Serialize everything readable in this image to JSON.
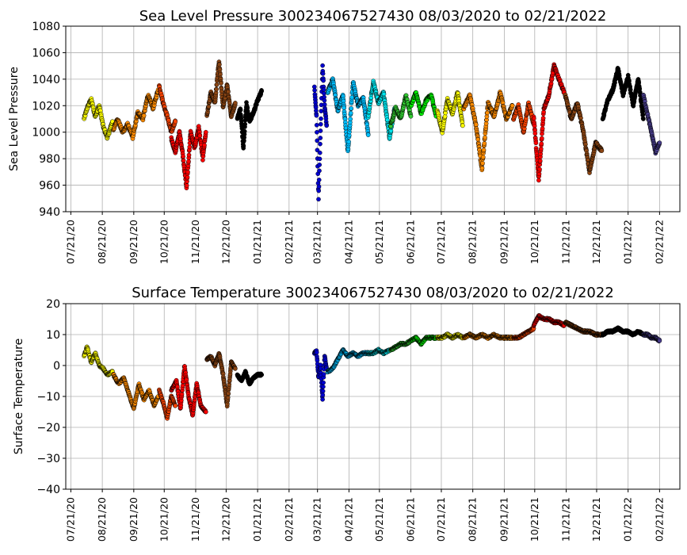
{
  "chart_data": [
    {
      "type": "scatter",
      "title": "Sea Level Pressure 300234067527430  08/03/2020 to 02/21/2022",
      "xlabel": "",
      "ylabel": "Sea Level Pressure",
      "ylim": [
        940,
        1080
      ],
      "yticks": [
        940,
        960,
        980,
        1000,
        1020,
        1040,
        1060,
        1080
      ],
      "xlim": [
        "2020-07-16",
        "2022-03-13"
      ],
      "xtick_labels": [
        "07/21/20",
        "08/21/20",
        "09/21/20",
        "10/21/20",
        "11/21/20",
        "12/21/20",
        "01/21/21",
        "02/21/21",
        "03/21/21",
        "04/21/21",
        "05/21/21",
        "06/21/21",
        "07/21/21",
        "08/21/21",
        "09/21/21",
        "10/21/21",
        "11/21/21",
        "12/21/21",
        "01/21/22",
        "02/21/22"
      ],
      "xtick_dates": [
        "2020-07-21",
        "2020-08-21",
        "2020-09-21",
        "2020-10-21",
        "2020-11-21",
        "2020-12-21",
        "2021-01-21",
        "2021-02-21",
        "2021-03-21",
        "2021-04-21",
        "2021-05-21",
        "2021-06-21",
        "2021-07-21",
        "2021-08-21",
        "2021-09-21",
        "2021-10-21",
        "2021-11-21",
        "2021-12-21",
        "2022-01-21",
        "2022-02-21"
      ],
      "grid": true,
      "series": [
        {
          "color": "#ffff00",
          "dates": [
            "2020-08-03",
            "2020-08-06",
            "2020-08-10",
            "2020-08-14",
            "2020-08-18",
            "2020-08-22",
            "2020-08-26",
            "2020-08-31"
          ],
          "values": [
            1010,
            1018,
            1025,
            1012,
            1020,
            1004,
            996,
            1008
          ]
        },
        {
          "color": "#ff8c00",
          "dates": [
            "2020-09-01",
            "2020-09-05",
            "2020-09-10",
            "2020-09-15",
            "2020-09-20",
            "2020-09-25",
            "2020-09-30",
            "2020-10-05",
            "2020-10-10",
            "2020-10-15"
          ],
          "values": [
            1002,
            1010,
            1000,
            1006,
            996,
            1015,
            1010,
            1028,
            1018,
            1032
          ]
        },
        {
          "color": "#ff4500",
          "dates": [
            "2020-10-16",
            "2020-10-20",
            "2020-10-24",
            "2020-10-28",
            "2020-11-01"
          ],
          "values": [
            1035,
            1022,
            1012,
            1000,
            1008
          ]
        },
        {
          "color": "#ff0000",
          "dates": [
            "2020-10-28",
            "2020-11-01",
            "2020-11-05",
            "2020-11-08",
            "2020-11-12",
            "2020-11-16",
            "2020-11-20",
            "2020-11-24",
            "2020-11-28",
            "2020-12-01"
          ],
          "values": [
            995,
            985,
            1000,
            985,
            958,
            1000,
            988,
            1004,
            980,
            1000
          ]
        },
        {
          "color": "#8b4513",
          "dates": [
            "2020-12-02",
            "2020-12-06",
            "2020-12-10",
            "2020-12-14",
            "2020-12-18",
            "2020-12-22",
            "2020-12-26",
            "2020-12-30"
          ],
          "values": [
            1012,
            1030,
            1022,
            1054,
            1018,
            1036,
            1012,
            1022
          ]
        },
        {
          "color": "#000000",
          "dates": [
            "2021-01-01",
            "2021-01-04",
            "2021-01-07",
            "2021-01-10",
            "2021-01-13",
            "2021-01-17",
            "2021-01-21",
            "2021-01-25"
          ],
          "values": [
            1010,
            1018,
            988,
            1022,
            1008,
            1015,
            1024,
            1031
          ]
        },
        {
          "color": "#0000cd",
          "dates": [
            "2021-03-18",
            "2021-03-20",
            "2021-03-22",
            "2021-03-24",
            "2021-03-26",
            "2021-03-28",
            "2021-03-30"
          ],
          "values": [
            1034,
            1012,
            950,
            1000,
            1050,
            1020,
            1005
          ]
        },
        {
          "color": "#00bfff",
          "dates": [
            "2021-03-31",
            "2021-04-05",
            "2021-04-10",
            "2021-04-15",
            "2021-04-20",
            "2021-04-25",
            "2021-04-30",
            "2021-05-05",
            "2021-05-10"
          ],
          "values": [
            1030,
            1040,
            1016,
            1028,
            985,
            1038,
            1020,
            1026,
            998
          ]
        },
        {
          "color": "#00e5ee",
          "dates": [
            "2021-05-10",
            "2021-05-15",
            "2021-05-20",
            "2021-05-25",
            "2021-05-31",
            "2021-06-05"
          ],
          "values": [
            1012,
            1038,
            1022,
            1030,
            996,
            1018
          ]
        },
        {
          "color": "#32cd32",
          "dates": [
            "2021-06-01",
            "2021-06-06",
            "2021-06-11",
            "2021-06-16",
            "2021-06-21"
          ],
          "values": [
            1005,
            1018,
            1010,
            1028,
            1012
          ]
        },
        {
          "color": "#00ff00",
          "dates": [
            "2021-06-21",
            "2021-06-26",
            "2021-07-01",
            "2021-07-06",
            "2021-07-11",
            "2021-07-16"
          ],
          "values": [
            1020,
            1030,
            1014,
            1024,
            1028,
            1012
          ]
        },
        {
          "color": "#ffff00",
          "dates": [
            "2021-07-17",
            "2021-07-22",
            "2021-07-27",
            "2021-08-01",
            "2021-08-06",
            "2021-08-11"
          ],
          "values": [
            1016,
            1000,
            1025,
            1014,
            1030,
            1005
          ]
        },
        {
          "color": "#ff8c00",
          "dates": [
            "2021-08-12",
            "2021-08-18",
            "2021-08-24",
            "2021-08-30",
            "2021-09-05",
            "2021-09-11",
            "2021-09-17",
            "2021-09-23",
            "2021-09-29"
          ],
          "values": [
            1018,
            1028,
            1006,
            972,
            1022,
            1012,
            1030,
            1010,
            1020
          ]
        },
        {
          "color": "#ff4500",
          "dates": [
            "2021-09-30",
            "2021-10-05",
            "2021-10-10",
            "2021-10-15",
            "2021-10-20"
          ],
          "values": [
            1010,
            1020,
            1000,
            1022,
            1006
          ]
        },
        {
          "color": "#ff0000",
          "dates": [
            "2021-10-20",
            "2021-10-25",
            "2021-10-30",
            "2021-11-04",
            "2021-11-09",
            "2021-11-14",
            "2021-11-19"
          ],
          "values": [
            1012,
            964,
            1018,
            1028,
            1050,
            1040,
            1030
          ]
        },
        {
          "color": "#8b4513",
          "dates": [
            "2021-11-20",
            "2021-11-26",
            "2021-12-02",
            "2021-12-08",
            "2021-12-14",
            "2021-12-20",
            "2021-12-26"
          ],
          "values": [
            1028,
            1010,
            1022,
            1000,
            970,
            992,
            986
          ]
        },
        {
          "color": "#000000",
          "dates": [
            "2021-12-27",
            "2022-01-01",
            "2022-01-06",
            "2022-01-11",
            "2022-01-16",
            "2022-01-21",
            "2022-01-26",
            "2022-01-31",
            "2022-02-05"
          ],
          "values": [
            1010,
            1024,
            1032,
            1048,
            1028,
            1042,
            1020,
            1040,
            1010
          ]
        },
        {
          "color": "#483d8b",
          "dates": [
            "2022-02-05",
            "2022-02-09",
            "2022-02-13",
            "2022-02-17",
            "2022-02-21"
          ],
          "values": [
            1028,
            1014,
            1000,
            985,
            992
          ]
        }
      ]
    },
    {
      "type": "scatter",
      "title": "Surface Temperature 300234067527430  08/03/2020 to 02/21/2022",
      "xlabel": "",
      "ylabel": "Surface Temperature",
      "ylim": [
        -40,
        20
      ],
      "yticks": [
        -40,
        -30,
        -20,
        -10,
        0,
        10,
        20
      ],
      "xlim": [
        "2020-07-16",
        "2022-03-13"
      ],
      "xtick_labels": [
        "07/21/20",
        "08/21/20",
        "09/21/20",
        "10/21/20",
        "11/21/20",
        "12/21/20",
        "01/21/21",
        "02/21/21",
        "03/21/21",
        "04/21/21",
        "05/21/21",
        "06/21/21",
        "07/21/21",
        "08/21/21",
        "09/21/21",
        "10/21/21",
        "11/21/21",
        "12/21/21",
        "01/21/22",
        "02/21/22"
      ],
      "xtick_dates": [
        "2020-07-21",
        "2020-08-21",
        "2020-09-21",
        "2020-10-21",
        "2020-11-21",
        "2020-12-21",
        "2021-01-21",
        "2021-02-21",
        "2021-03-21",
        "2021-04-21",
        "2021-05-21",
        "2021-06-21",
        "2021-07-21",
        "2021-08-21",
        "2021-09-21",
        "2021-10-21",
        "2021-11-21",
        "2021-12-21",
        "2022-01-21",
        "2022-02-21"
      ],
      "grid": true,
      "series": [
        {
          "color": "#ffff00",
          "dates": [
            "2020-08-03",
            "2020-08-06",
            "2020-08-10",
            "2020-08-14",
            "2020-08-18",
            "2020-08-22",
            "2020-08-26",
            "2020-08-31"
          ],
          "values": [
            3,
            6,
            1,
            4,
            0,
            -1,
            -3,
            -2
          ]
        },
        {
          "color": "#ff8c00",
          "dates": [
            "2020-09-01",
            "2020-09-06",
            "2020-09-11",
            "2020-09-16",
            "2020-09-21",
            "2020-09-26",
            "2020-10-01",
            "2020-10-06",
            "2020-10-11",
            "2020-10-15"
          ],
          "values": [
            -3,
            -6,
            -4,
            -9,
            -14,
            -6,
            -11,
            -8,
            -13,
            -10
          ]
        },
        {
          "color": "#ff4500",
          "dates": [
            "2020-10-16",
            "2020-10-20",
            "2020-10-24",
            "2020-10-28",
            "2020-11-01"
          ],
          "values": [
            -8,
            -12,
            -17,
            -10,
            -13
          ]
        },
        {
          "color": "#ff0000",
          "dates": [
            "2020-10-28",
            "2020-11-02",
            "2020-11-06",
            "2020-11-10",
            "2020-11-14",
            "2020-11-18",
            "2020-11-22",
            "2020-11-26",
            "2020-12-01"
          ],
          "values": [
            -8,
            -5,
            -14,
            0,
            -10,
            -16,
            -6,
            -13,
            -15
          ]
        },
        {
          "color": "#8b4513",
          "dates": [
            "2020-12-02",
            "2020-12-06",
            "2020-12-10",
            "2020-12-14",
            "2020-12-18",
            "2020-12-22",
            "2020-12-26",
            "2020-12-30"
          ],
          "values": [
            2,
            3,
            0,
            4,
            -3,
            -13,
            1,
            -1
          ]
        },
        {
          "color": "#000000",
          "dates": [
            "2021-01-01",
            "2021-01-05",
            "2021-01-09",
            "2021-01-13",
            "2021-01-17",
            "2021-01-21",
            "2021-01-25"
          ],
          "values": [
            -3,
            -5,
            -2,
            -6,
            -4,
            -3,
            -3
          ]
        },
        {
          "color": "#0000cd",
          "dates": [
            "2021-03-18",
            "2021-03-20",
            "2021-03-22",
            "2021-03-24",
            "2021-03-26",
            "2021-03-28",
            "2021-03-30"
          ],
          "values": [
            4,
            5,
            -4,
            0,
            -11,
            3,
            -1
          ]
        },
        {
          "color": "#00bfff",
          "dates": [
            "2021-03-31",
            "2021-04-05",
            "2021-04-10",
            "2021-04-15",
            "2021-04-20",
            "2021-04-25",
            "2021-04-30",
            "2021-05-05",
            "2021-05-10"
          ],
          "values": [
            -2,
            -1,
            2,
            5,
            3,
            4,
            3,
            4,
            4
          ]
        },
        {
          "color": "#00e5ee",
          "dates": [
            "2021-05-10",
            "2021-05-15",
            "2021-05-20",
            "2021-05-25",
            "2021-05-31"
          ],
          "values": [
            4,
            4,
            5,
            4,
            5
          ]
        },
        {
          "color": "#32cd32",
          "dates": [
            "2021-06-01",
            "2021-06-06",
            "2021-06-11",
            "2021-06-16",
            "2021-06-21"
          ],
          "values": [
            5,
            6,
            7,
            7,
            8
          ]
        },
        {
          "color": "#00ff00",
          "dates": [
            "2021-06-21",
            "2021-06-26",
            "2021-07-01",
            "2021-07-06",
            "2021-07-11",
            "2021-07-16"
          ],
          "values": [
            8,
            9,
            7,
            9,
            9,
            9
          ]
        },
        {
          "color": "#ffff00",
          "dates": [
            "2021-07-17",
            "2021-07-22",
            "2021-07-27",
            "2021-08-01",
            "2021-08-06",
            "2021-08-11"
          ],
          "values": [
            9,
            9,
            10,
            9,
            10,
            9
          ]
        },
        {
          "color": "#ff8c00",
          "dates": [
            "2021-08-12",
            "2021-08-18",
            "2021-08-24",
            "2021-08-30",
            "2021-09-05",
            "2021-09-11",
            "2021-09-17",
            "2021-09-23",
            "2021-09-29"
          ],
          "values": [
            9,
            10,
            9,
            10,
            9,
            10,
            9,
            9,
            9
          ]
        },
        {
          "color": "#ff4500",
          "dates": [
            "2021-09-30",
            "2021-10-05",
            "2021-10-10",
            "2021-10-15",
            "2021-10-20"
          ],
          "values": [
            9,
            9,
            10,
            11,
            12
          ]
        },
        {
          "color": "#ff0000",
          "dates": [
            "2021-10-20",
            "2021-10-25",
            "2021-10-30",
            "2021-11-04",
            "2021-11-09",
            "2021-11-14",
            "2021-11-19"
          ],
          "values": [
            13,
            16,
            15,
            15,
            14,
            14,
            13
          ]
        },
        {
          "color": "#8b4513",
          "dates": [
            "2021-11-20",
            "2021-11-26",
            "2021-12-02",
            "2021-12-08",
            "2021-12-14",
            "2021-12-20",
            "2021-12-26"
          ],
          "values": [
            14,
            13,
            12,
            11,
            11,
            10,
            10
          ]
        },
        {
          "color": "#000000",
          "dates": [
            "2021-12-27",
            "2022-01-01",
            "2022-01-06",
            "2022-01-11",
            "2022-01-16",
            "2022-01-21",
            "2022-01-26",
            "2022-01-31",
            "2022-02-05"
          ],
          "values": [
            10,
            11,
            11,
            12,
            11,
            11,
            10,
            11,
            10
          ]
        },
        {
          "color": "#483d8b",
          "dates": [
            "2022-02-05",
            "2022-02-09",
            "2022-02-13",
            "2022-02-17",
            "2022-02-21"
          ],
          "values": [
            10,
            10,
            9,
            9,
            8
          ]
        }
      ]
    }
  ]
}
